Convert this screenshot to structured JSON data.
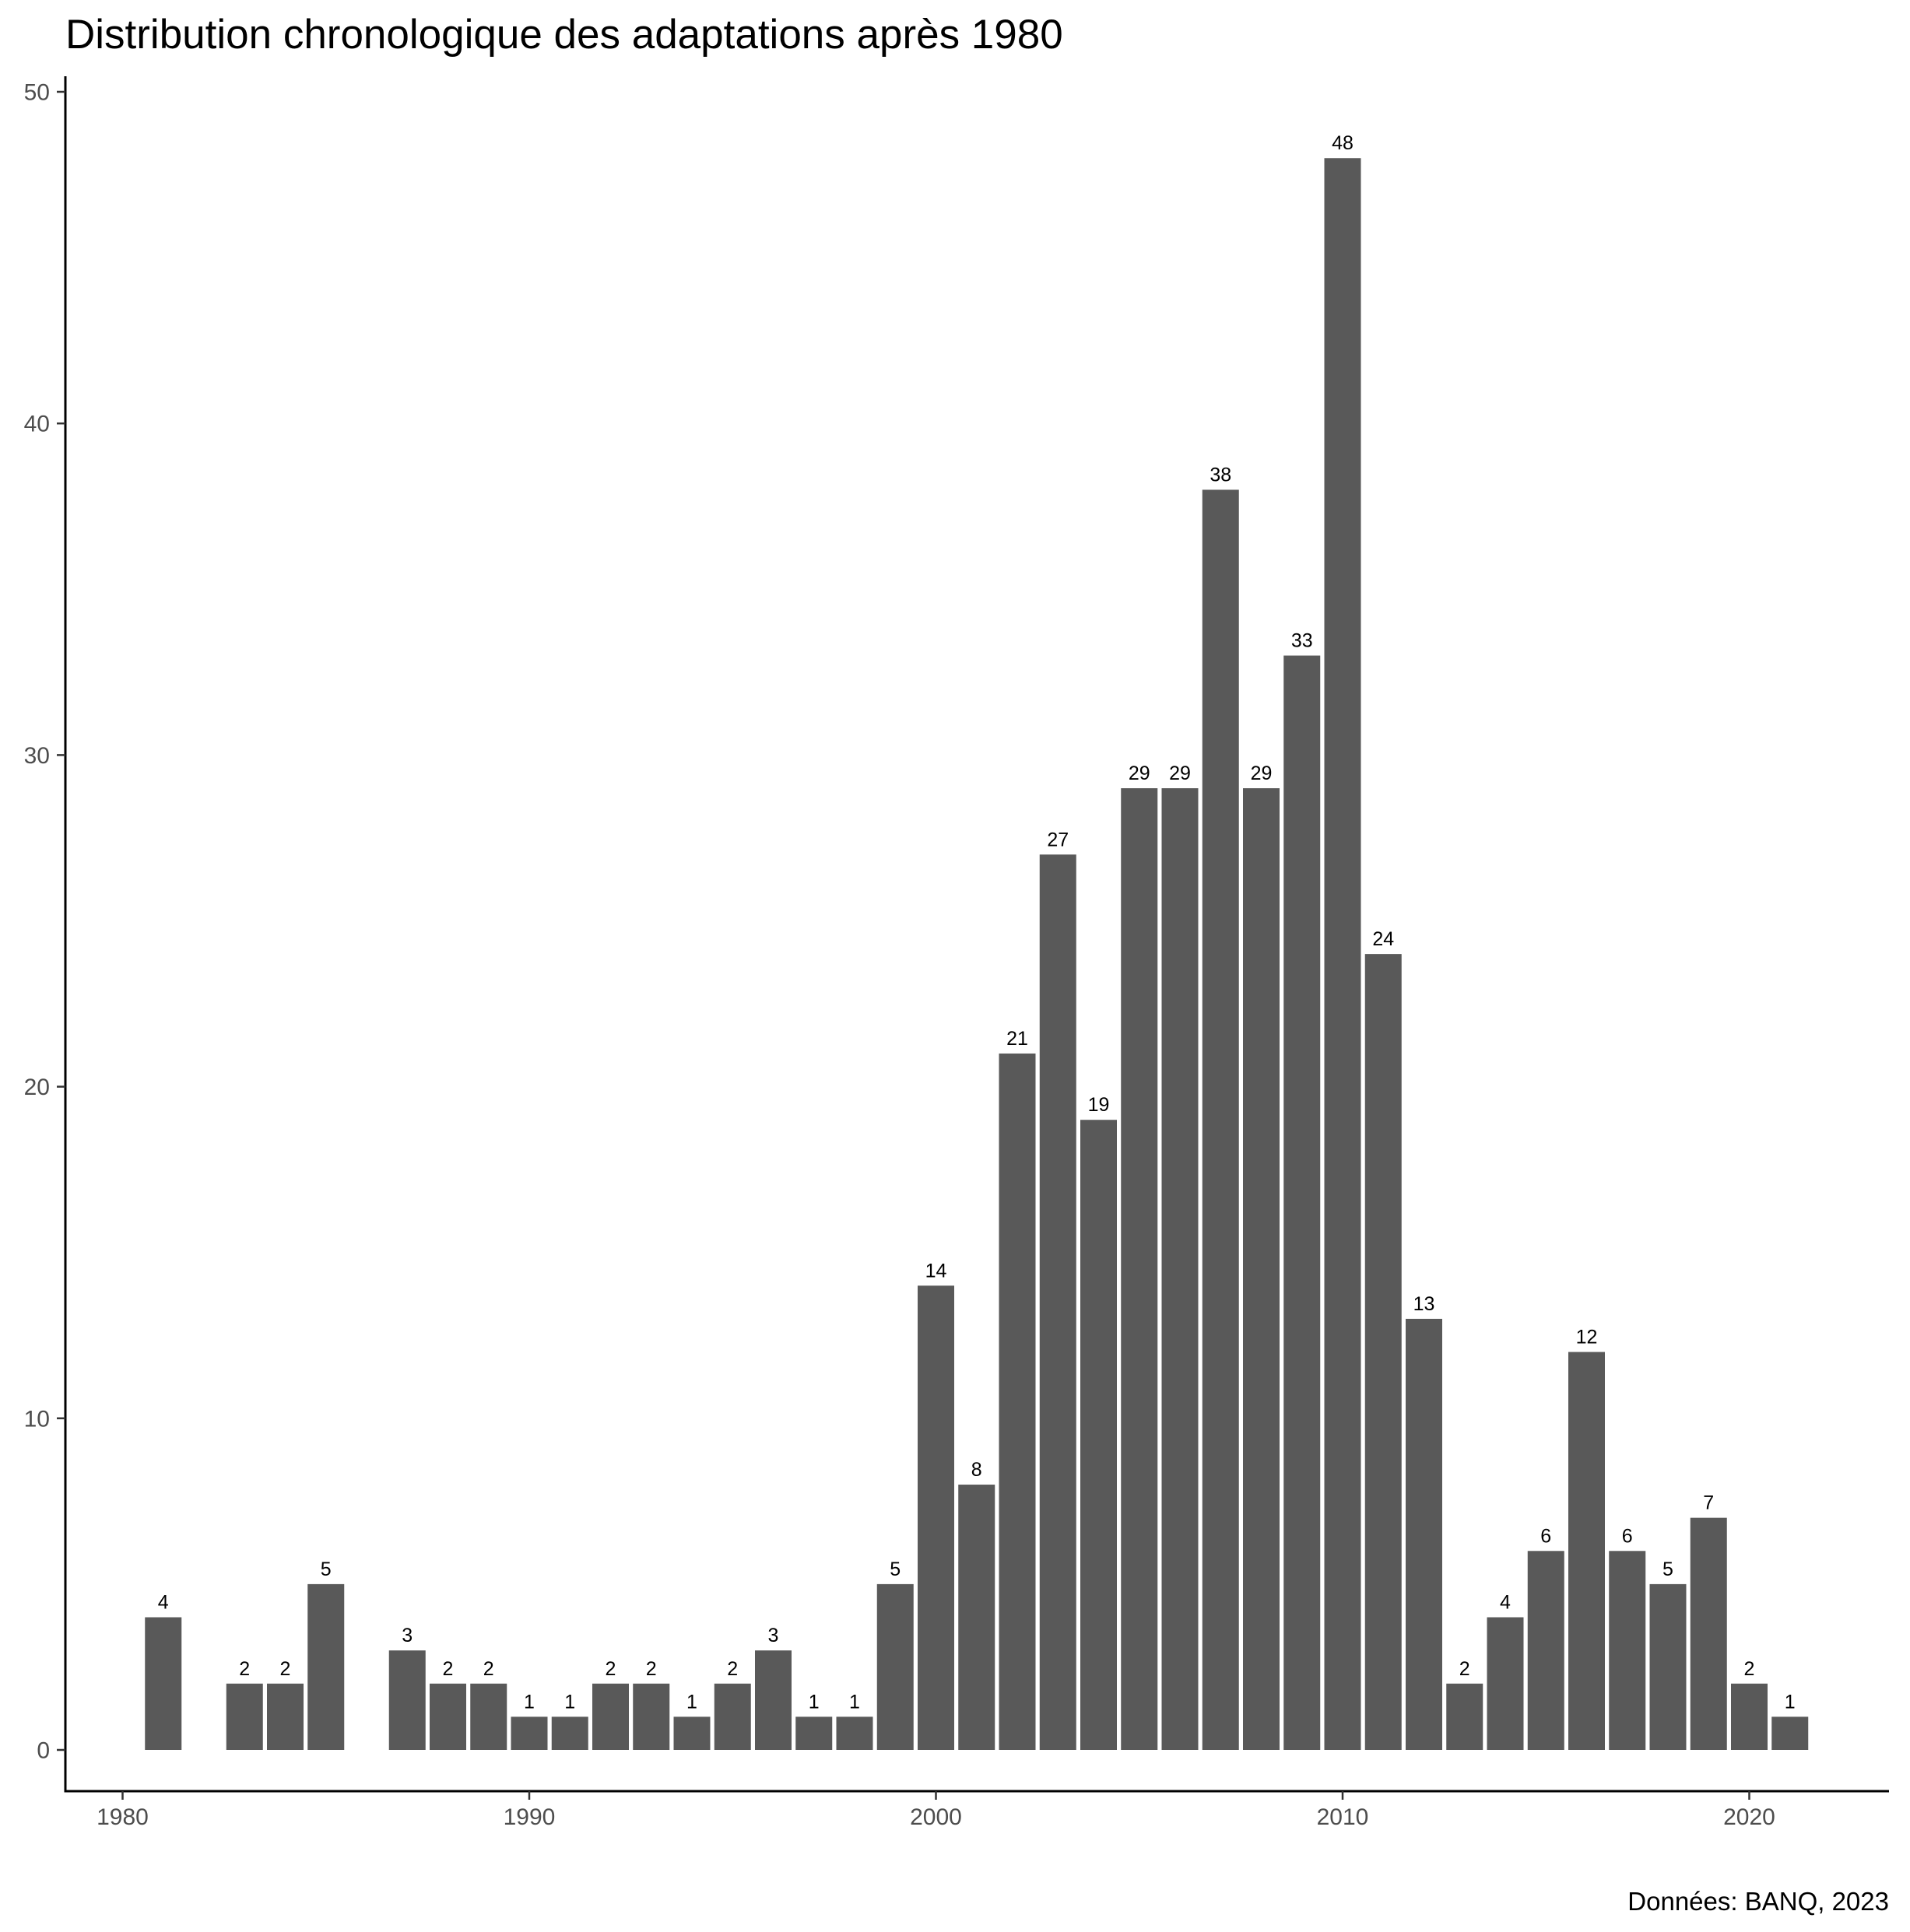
{
  "chart_data": {
    "type": "bar",
    "title": "Distribution chronologique des adaptations après 1980",
    "caption": "Données: BANQ, 2023",
    "xlabel": "",
    "ylabel": "",
    "xlim": [
      1980,
      2022
    ],
    "ylim": [
      0,
      50
    ],
    "x_ticks": [
      1980,
      1990,
      2000,
      2010,
      2020
    ],
    "y_ticks": [
      0,
      10,
      20,
      30,
      40,
      50
    ],
    "grid": false,
    "bar_color": "#595959",
    "x": [
      1981,
      1983,
      1984,
      1985,
      1987,
      1988,
      1989,
      1990,
      1991,
      1992,
      1993,
      1994,
      1995,
      1996,
      1997,
      1998,
      1999,
      2000,
      2001,
      2002,
      2003,
      2004,
      2005,
      2006,
      2007,
      2008,
      2009,
      2010,
      2011,
      2012,
      2013,
      2014,
      2015,
      2016,
      2017,
      2018,
      2019,
      2020,
      2021
    ],
    "values": [
      4,
      2,
      2,
      5,
      3,
      2,
      2,
      1,
      1,
      2,
      2,
      1,
      2,
      3,
      1,
      1,
      5,
      14,
      8,
      21,
      27,
      19,
      29,
      29,
      38,
      29,
      33,
      48,
      24,
      13,
      2,
      4,
      6,
      12,
      6,
      5,
      7,
      2,
      1
    ]
  }
}
